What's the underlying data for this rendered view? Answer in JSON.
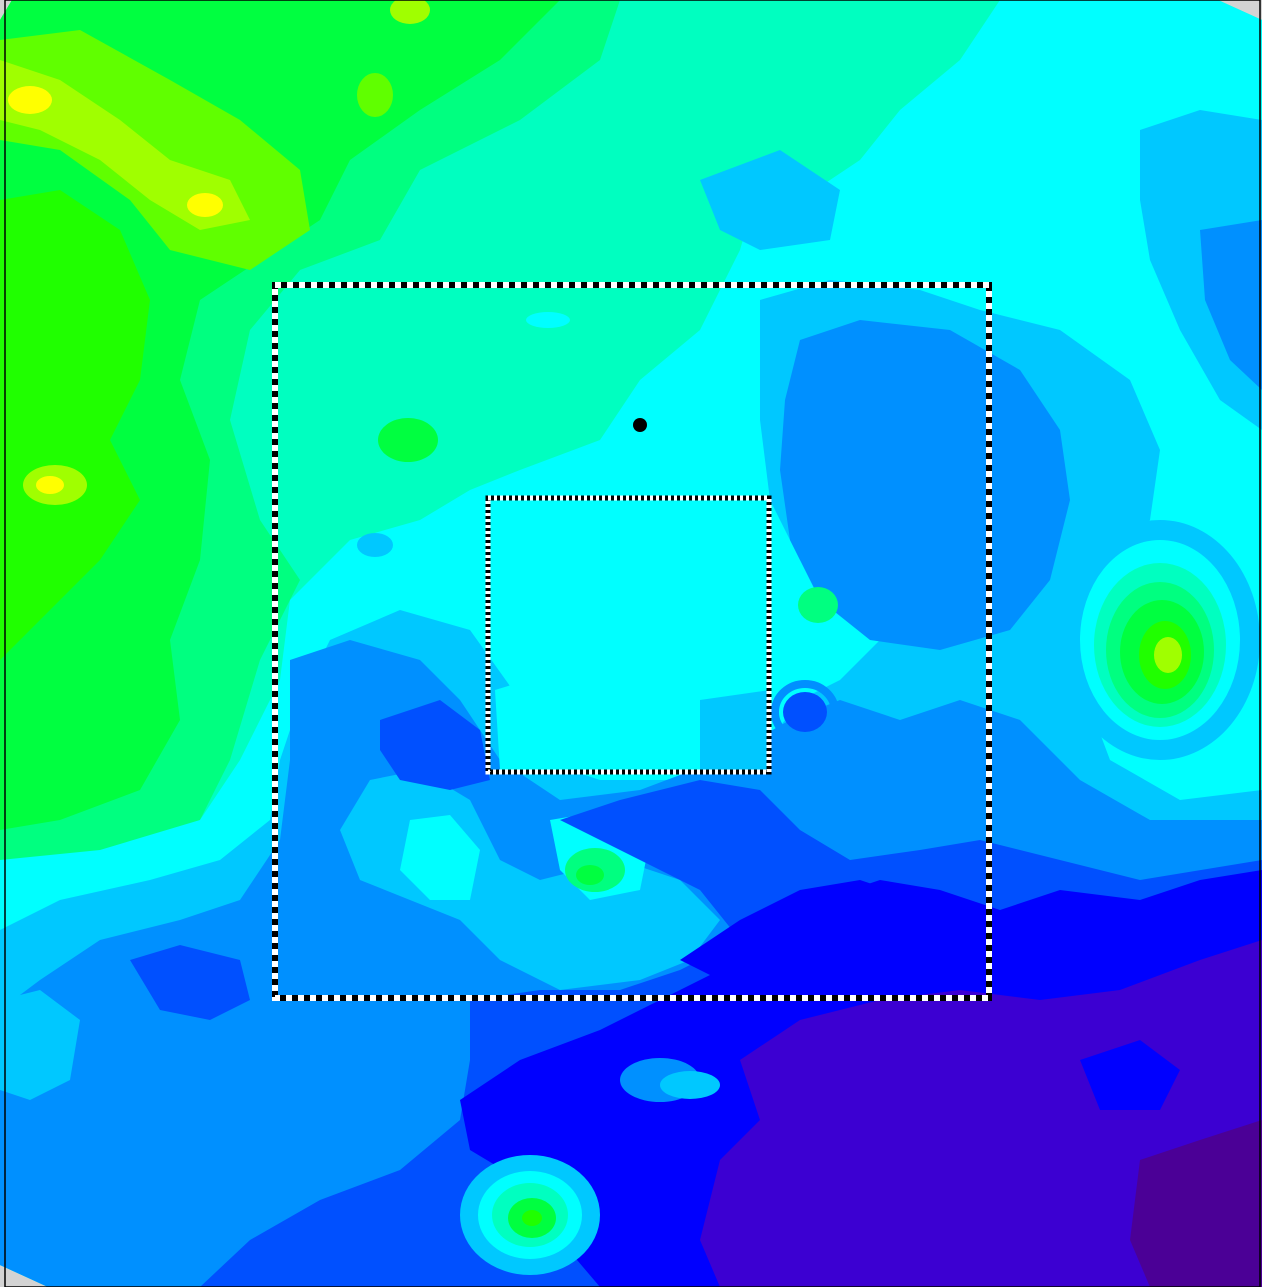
{
  "map": {
    "background_color": "#d3d3d3",
    "frame_color": "#000000",
    "palette": {
      "violet_dark": "#4b0096",
      "violet": "#3c00d2",
      "blue": "#0000ff",
      "blue_mid": "#0050ff",
      "blue_light": "#0090ff",
      "sky": "#00c8ff",
      "cyan": "#00ffff",
      "aqua": "#00ffc0",
      "spring": "#00ff80",
      "green": "#00ff40",
      "green_bright": "#20ff00",
      "lime": "#60ff00",
      "yellow_green": "#a0ff00",
      "yellow": "#ffff00",
      "orange": "#ffb000"
    },
    "outer_box_style": "black-white-dashed",
    "inner_box_style": "black-white-dashed",
    "marker_color": "#000000"
  }
}
